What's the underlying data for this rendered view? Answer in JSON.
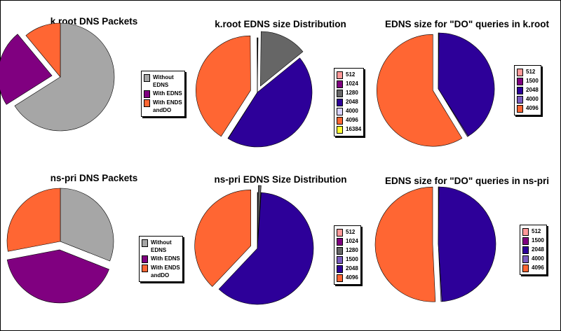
{
  "colors": {
    "gray": "#a6a6a6",
    "purple": "#800080",
    "orange": "#ff6633",
    "pink": "#ff9999",
    "darkgray": "#666666",
    "navy": "#2d0099",
    "lavender": "#d9d3ff",
    "yellow": "#ffff33",
    "violet": "#7a5cbf"
  },
  "chart_data": [
    {
      "type": "pie",
      "title": "k.root DNS Packets",
      "slices": [
        {
          "label": "Without EDNS",
          "value": 66,
          "color": "#a6a6a6"
        },
        {
          "label": "With EDNS",
          "value": 23,
          "color": "#800080"
        },
        {
          "label": "With ENDS andDO",
          "value": 11,
          "color": "#ff6633"
        }
      ]
    },
    {
      "type": "pie",
      "title": "k.root EDNS size Distribution",
      "slices": [
        {
          "label": "512",
          "value": 0.1,
          "color": "#ff9999"
        },
        {
          "label": "1024",
          "value": 0.1,
          "color": "#800080"
        },
        {
          "label": "1280",
          "value": 14,
          "color": "#666666"
        },
        {
          "label": "2048",
          "value": 45,
          "color": "#2d0099"
        },
        {
          "label": "4000",
          "value": 0.1,
          "color": "#d9d3ff"
        },
        {
          "label": "4096",
          "value": 41,
          "color": "#ff6633"
        },
        {
          "label": "16384",
          "value": 0.1,
          "color": "#ffff33"
        }
      ]
    },
    {
      "type": "pie",
      "title": "EDNS size for \"DO\" queries in k.root",
      "slices": [
        {
          "label": "512",
          "value": 0.1,
          "color": "#ff9999"
        },
        {
          "label": "1500",
          "value": 0.1,
          "color": "#800080"
        },
        {
          "label": "2048",
          "value": 41,
          "color": "#2d0099"
        },
        {
          "label": "4000",
          "value": 0.3,
          "color": "#7a5cbf"
        },
        {
          "label": "4096",
          "value": 59,
          "color": "#ff6633"
        }
      ]
    },
    {
      "type": "pie",
      "title": "ns-pri DNS Packets",
      "slices": [
        {
          "label": "Without EDNS",
          "value": 31,
          "color": "#a6a6a6"
        },
        {
          "label": "With EDNS",
          "value": 41,
          "color": "#800080"
        },
        {
          "label": "With ENDS andDO",
          "value": 28,
          "color": "#ff6633"
        }
      ]
    },
    {
      "type": "pie",
      "title": "ns-pri EDNS Size Distribution",
      "slices": [
        {
          "label": "512",
          "value": 0.1,
          "color": "#ff9999"
        },
        {
          "label": "1024",
          "value": 0.1,
          "color": "#800080"
        },
        {
          "label": "1280",
          "value": 0.8,
          "color": "#666666"
        },
        {
          "label": "1500",
          "value": 0.1,
          "color": "#7a5cbf"
        },
        {
          "label": "2048",
          "value": 61,
          "color": "#2d0099"
        },
        {
          "label": "4096",
          "value": 38,
          "color": "#ff6633"
        }
      ]
    },
    {
      "type": "pie",
      "title": "EDNS size for \"DO\" queries in ns-pri",
      "slices": [
        {
          "label": "512",
          "value": 0.1,
          "color": "#ff9999"
        },
        {
          "label": "1500",
          "value": 0.1,
          "color": "#800080"
        },
        {
          "label": "2048",
          "value": 49,
          "color": "#2d0099"
        },
        {
          "label": "4000",
          "value": 0.3,
          "color": "#7a5cbf"
        },
        {
          "label": "4096",
          "value": 51,
          "color": "#ff6633"
        }
      ]
    }
  ]
}
